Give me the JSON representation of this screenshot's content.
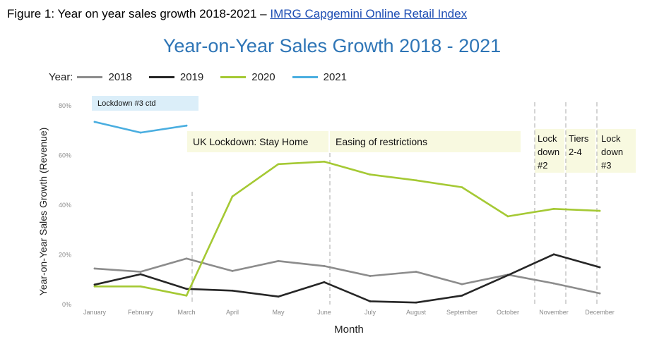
{
  "caption": {
    "prefix": "Figure 1: Year on year sales growth 2018-2021 – ",
    "link_text": "IMRG Capgemini Online Retail Index"
  },
  "chart_data": {
    "type": "line",
    "title": "Year-on-Year Sales Growth 2018 - 2021",
    "xlabel": "Month",
    "ylabel": "Year-on-Year Sales Growth (Revenue)",
    "categories": [
      "January",
      "February",
      "March",
      "April",
      "May",
      "June",
      "July",
      "August",
      "September",
      "October",
      "November",
      "December"
    ],
    "yticks": [
      "0%",
      "20%",
      "40%",
      "60%",
      "80%"
    ],
    "ylim": [
      0,
      80
    ],
    "grid": false,
    "legend_title": "Year:",
    "legend_position": "top-left",
    "series": [
      {
        "name": "2018",
        "color": "#8c8c8c",
        "values": [
          14.5,
          13.2,
          18.5,
          13.5,
          17.5,
          15.5,
          11.5,
          13.2,
          8.2,
          12.0,
          8.5,
          4.5
        ]
      },
      {
        "name": "2019",
        "color": "#262626",
        "values": [
          8.0,
          12.2,
          6.3,
          5.6,
          3.2,
          9.0,
          1.3,
          0.8,
          3.6,
          11.8,
          20.2,
          15.0
        ]
      },
      {
        "name": "2020",
        "color": "#a5c934",
        "values": [
          7.3,
          7.3,
          3.6,
          43.5,
          56.5,
          57.5,
          52.3,
          50.0,
          47.2,
          35.5,
          38.5,
          37.7
        ]
      },
      {
        "name": "2021",
        "color": "#4aaee0",
        "values": [
          73.5,
          69.2,
          72.0,
          null,
          null,
          null,
          null,
          null,
          null,
          null,
          null,
          null
        ]
      }
    ],
    "annotations": [
      {
        "id": "lockdown3-ctd",
        "text": [
          "Lockdown #3 ctd"
        ],
        "fill": "#dbeef9"
      },
      {
        "id": "uk-lockdown",
        "text": [
          "UK Lockdown: Stay Home"
        ],
        "fill": "#f8f9e0"
      },
      {
        "id": "easing",
        "text": [
          "Easing of restrictions"
        ],
        "fill": "#f8f9e0"
      },
      {
        "id": "lockdown2",
        "text": [
          "Lock",
          "down",
          "#2"
        ],
        "fill": "#f8f9e0"
      },
      {
        "id": "tiers",
        "text": [
          "Tiers",
          "2-4"
        ],
        "fill": "#f8f9e0"
      },
      {
        "id": "lockdown3",
        "text": [
          "Lock",
          "down",
          "#3"
        ],
        "fill": "#f8f9e0"
      }
    ]
  }
}
